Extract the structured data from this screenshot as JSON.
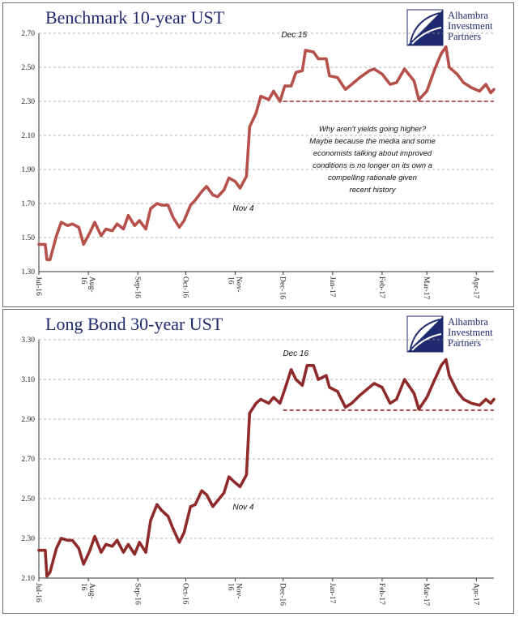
{
  "logo": {
    "lines": [
      "Alhambra",
      "Investment",
      "Partners"
    ]
  },
  "chart_data": [
    {
      "type": "line",
      "title": "Benchmark 10-year UST",
      "ylim": [
        1.3,
        2.7
      ],
      "yticks": [
        "2.70",
        "2.50",
        "2.30",
        "2.10",
        "1.90",
        "1.70",
        "1.50",
        "1.30"
      ],
      "ytick_values": [
        2.7,
        2.5,
        2.3,
        2.1,
        1.9,
        1.7,
        1.5,
        1.3
      ],
      "xticks": [
        {
          "label": [
            "Jul-16"
          ],
          "date": "2016-07-01"
        },
        {
          "label": [
            "Aug-",
            "16"
          ],
          "date": "2016-08-01"
        },
        {
          "label": [
            "Sep-16"
          ],
          "date": "2016-09-01"
        },
        {
          "label": [
            "Oct-16"
          ],
          "date": "2016-10-01"
        },
        {
          "label": [
            "Nov-",
            "16"
          ],
          "date": "2016-11-01"
        },
        {
          "label": [
            "Dec-16"
          ],
          "date": "2016-12-01"
        },
        {
          "label": [
            "Jan-17"
          ],
          "date": "2017-01-01"
        },
        {
          "label": [
            "Feb-17"
          ],
          "date": "2017-02-01"
        },
        {
          "label": [
            "Mar-17"
          ],
          "date": "2017-03-01"
        },
        {
          "label": [
            "Apr-17"
          ],
          "date": "2017-04-01"
        }
      ],
      "xlim": [
        "2016-07-01",
        "2017-04-12"
      ],
      "grid": true,
      "series": [
        {
          "color": "#b5504b",
          "x": [
            "2016-07-01",
            "2016-07-05",
            "2016-07-06",
            "2016-07-08",
            "2016-07-12",
            "2016-07-15",
            "2016-07-19",
            "2016-07-22",
            "2016-07-26",
            "2016-07-29",
            "2016-08-02",
            "2016-08-05",
            "2016-08-09",
            "2016-08-12",
            "2016-08-16",
            "2016-08-19",
            "2016-08-23",
            "2016-08-26",
            "2016-08-30",
            "2016-09-02",
            "2016-09-06",
            "2016-09-09",
            "2016-09-13",
            "2016-09-16",
            "2016-09-20",
            "2016-09-23",
            "2016-09-27",
            "2016-09-30",
            "2016-10-04",
            "2016-10-07",
            "2016-10-11",
            "2016-10-14",
            "2016-10-18",
            "2016-10-21",
            "2016-10-25",
            "2016-10-28",
            "2016-11-01",
            "2016-11-04",
            "2016-11-08",
            "2016-11-10",
            "2016-11-14",
            "2016-11-17",
            "2016-11-22",
            "2016-11-25",
            "2016-11-29",
            "2016-12-02",
            "2016-12-06",
            "2016-12-09",
            "2016-12-13",
            "2016-12-15",
            "2016-12-20",
            "2016-12-23",
            "2016-12-28",
            "2016-12-30",
            "2017-01-04",
            "2017-01-09",
            "2017-01-13",
            "2017-01-18",
            "2017-01-24",
            "2017-01-27",
            "2017-02-01",
            "2017-02-06",
            "2017-02-10",
            "2017-02-15",
            "2017-02-21",
            "2017-02-24",
            "2017-03-01",
            "2017-03-06",
            "2017-03-10",
            "2017-03-13",
            "2017-03-15",
            "2017-03-20",
            "2017-03-24",
            "2017-03-29",
            "2017-04-03",
            "2017-04-07",
            "2017-04-10",
            "2017-04-12"
          ],
          "y": [
            1.46,
            1.46,
            1.37,
            1.37,
            1.51,
            1.59,
            1.57,
            1.58,
            1.56,
            1.46,
            1.53,
            1.59,
            1.51,
            1.55,
            1.54,
            1.58,
            1.55,
            1.63,
            1.57,
            1.6,
            1.55,
            1.67,
            1.7,
            1.69,
            1.69,
            1.62,
            1.56,
            1.6,
            1.69,
            1.72,
            1.77,
            1.8,
            1.75,
            1.74,
            1.78,
            1.85,
            1.83,
            1.79,
            1.86,
            2.15,
            2.23,
            2.33,
            2.31,
            2.36,
            2.3,
            2.39,
            2.39,
            2.47,
            2.48,
            2.6,
            2.59,
            2.55,
            2.55,
            2.45,
            2.44,
            2.37,
            2.4,
            2.44,
            2.48,
            2.49,
            2.46,
            2.4,
            2.41,
            2.49,
            2.42,
            2.31,
            2.36,
            2.49,
            2.58,
            2.62,
            2.5,
            2.46,
            2.41,
            2.38,
            2.36,
            2.4,
            2.35,
            2.37
          ]
        }
      ],
      "annotations": [
        {
          "text": "Dec 15",
          "date": "2016-12-15",
          "value": 2.62
        },
        {
          "text": "Nov 4",
          "date": "2016-11-04",
          "value": 1.79
        }
      ],
      "reference_level": 2.3,
      "reference_start": "2016-12-01",
      "note": [
        "Why aren't yields going higher?",
        "Maybe because the media and some",
        "economists talking about improved",
        "conditions is no longer on its own a",
        "compelling rationale given",
        "recent history"
      ]
    },
    {
      "type": "line",
      "title": "Long Bond 30-year UST",
      "ylim": [
        2.1,
        3.3
      ],
      "yticks": [
        "3.30",
        "3.10",
        "2.90",
        "2.70",
        "2.50",
        "2.30",
        "2.10"
      ],
      "ytick_values": [
        3.3,
        3.1,
        2.9,
        2.7,
        2.5,
        2.3,
        2.1
      ],
      "xticks": [
        {
          "label": [
            "Jul-16"
          ],
          "date": "2016-07-01"
        },
        {
          "label": [
            "Aug-",
            "16"
          ],
          "date": "2016-08-01"
        },
        {
          "label": [
            "Sep-16"
          ],
          "date": "2016-09-01"
        },
        {
          "label": [
            "Oct-16"
          ],
          "date": "2016-10-01"
        },
        {
          "label": [
            "Nov-",
            "16"
          ],
          "date": "2016-11-01"
        },
        {
          "label": [
            "Dec-16"
          ],
          "date": "2016-12-01"
        },
        {
          "label": [
            "Jan-17"
          ],
          "date": "2017-01-01"
        },
        {
          "label": [
            "Feb-17"
          ],
          "date": "2017-02-01"
        },
        {
          "label": [
            "Mar-17"
          ],
          "date": "2017-03-01"
        },
        {
          "label": [
            "Apr-17"
          ],
          "date": "2017-04-01"
        }
      ],
      "xlim": [
        "2016-07-01",
        "2017-04-12"
      ],
      "grid": true,
      "series": [
        {
          "color": "#8e2a2a",
          "x": [
            "2016-07-01",
            "2016-07-05",
            "2016-07-06",
            "2016-07-08",
            "2016-07-12",
            "2016-07-15",
            "2016-07-19",
            "2016-07-22",
            "2016-07-26",
            "2016-07-29",
            "2016-08-02",
            "2016-08-05",
            "2016-08-09",
            "2016-08-12",
            "2016-08-16",
            "2016-08-19",
            "2016-08-23",
            "2016-08-26",
            "2016-08-30",
            "2016-09-02",
            "2016-09-06",
            "2016-09-09",
            "2016-09-13",
            "2016-09-16",
            "2016-09-20",
            "2016-09-23",
            "2016-09-27",
            "2016-09-30",
            "2016-10-04",
            "2016-10-07",
            "2016-10-11",
            "2016-10-14",
            "2016-10-18",
            "2016-10-21",
            "2016-10-25",
            "2016-10-28",
            "2016-11-01",
            "2016-11-04",
            "2016-11-08",
            "2016-11-10",
            "2016-11-14",
            "2016-11-17",
            "2016-11-22",
            "2016-11-25",
            "2016-11-29",
            "2016-12-02",
            "2016-12-06",
            "2016-12-09",
            "2016-12-13",
            "2016-12-16",
            "2016-12-20",
            "2016-12-23",
            "2016-12-28",
            "2016-12-30",
            "2017-01-04",
            "2017-01-09",
            "2017-01-13",
            "2017-01-18",
            "2017-01-24",
            "2017-01-27",
            "2017-02-01",
            "2017-02-06",
            "2017-02-10",
            "2017-02-15",
            "2017-02-21",
            "2017-02-24",
            "2017-03-01",
            "2017-03-06",
            "2017-03-10",
            "2017-03-13",
            "2017-03-15",
            "2017-03-20",
            "2017-03-24",
            "2017-03-29",
            "2017-04-03",
            "2017-04-07",
            "2017-04-10",
            "2017-04-12"
          ],
          "y": [
            2.24,
            2.24,
            2.11,
            2.13,
            2.25,
            2.3,
            2.29,
            2.29,
            2.25,
            2.17,
            2.24,
            2.31,
            2.23,
            2.27,
            2.26,
            2.29,
            2.23,
            2.27,
            2.22,
            2.28,
            2.23,
            2.39,
            2.47,
            2.44,
            2.41,
            2.35,
            2.28,
            2.33,
            2.46,
            2.47,
            2.54,
            2.52,
            2.46,
            2.49,
            2.53,
            2.61,
            2.58,
            2.56,
            2.62,
            2.93,
            2.98,
            3.0,
            2.98,
            3.01,
            2.98,
            3.05,
            3.15,
            3.1,
            3.07,
            3.17,
            3.17,
            3.1,
            3.12,
            3.06,
            3.04,
            2.96,
            2.98,
            3.02,
            3.06,
            3.08,
            3.06,
            2.98,
            3.0,
            3.1,
            3.03,
            2.95,
            3.01,
            3.1,
            3.17,
            3.2,
            3.12,
            3.04,
            3.0,
            2.98,
            2.97,
            3.0,
            2.98,
            3.0
          ]
        }
      ],
      "annotations": [
        {
          "text": "Dec 16",
          "date": "2016-12-16",
          "value": 3.17
        },
        {
          "text": "Nov 4",
          "date": "2016-11-04",
          "value": 2.56
        }
      ],
      "reference_level": 2.945,
      "reference_start": "2016-12-01"
    }
  ]
}
